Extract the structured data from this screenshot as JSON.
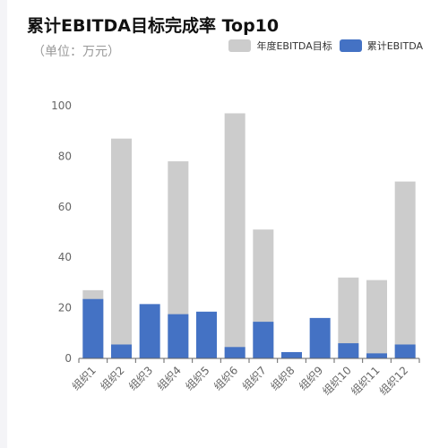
{
  "title": "累计EBITDA目标完成率 Top10",
  "subtitle": "（单位：万元）",
  "colors": {
    "target": "#cccccc",
    "actual": "#4472c4",
    "axis": "#666666"
  },
  "chart_data": {
    "type": "bar",
    "title": "累计EBITDA目标完成率 Top10",
    "subtitle": "（单位：万元）",
    "categories": [
      "组织1",
      "组织2",
      "组织3",
      "组织4",
      "组织5",
      "组织6",
      "组织7",
      "组织8",
      "组织9",
      "组织10",
      "组织11",
      "组织12"
    ],
    "series": [
      {
        "name": "年度EBITDA目标",
        "values": [
          27,
          87,
          0,
          78,
          0,
          97,
          51,
          0,
          0,
          32,
          31,
          70
        ]
      },
      {
        "name": "累计EBITDA",
        "values": [
          23.5,
          5.5,
          21.5,
          17.5,
          18.5,
          4.5,
          14.5,
          2.5,
          16,
          6,
          2,
          5.5
        ]
      }
    ],
    "ylim": [
      0,
      100
    ],
    "yticks": [
      0,
      20,
      40,
      60,
      80,
      100
    ],
    "legend_position": "top-right",
    "grid": false,
    "overlap": true
  }
}
